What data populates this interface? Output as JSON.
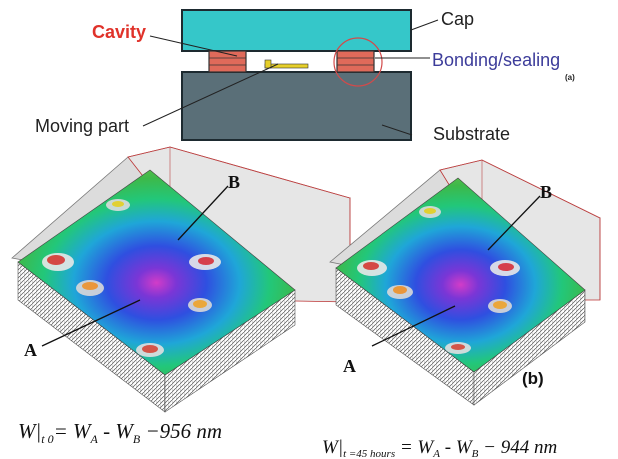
{
  "package_diagram": {
    "labels": {
      "cavity": "Cavity",
      "cap": "Cap",
      "bonding_sealing": "Bonding/sealing",
      "part_a": "(a)",
      "moving_part": "Moving part",
      "substrate": "Substrate"
    },
    "colors": {
      "cap_fill": "#35c7c9",
      "substrate_fill": "#5a6f78",
      "seal_fill": "#e06a5a",
      "moving_part_fill": "#e6cf2a",
      "cavity_label": "#e0322a",
      "bonding_label": "#3c3c9a"
    }
  },
  "surface_plots": {
    "left": {
      "point_a": "A",
      "point_b": "B"
    },
    "right": {
      "point_a": "A",
      "point_b": "B",
      "part_label": "(b)"
    }
  },
  "equations": {
    "left": {
      "lhs": "W|",
      "subscript": "t  0",
      "rhs": "= W",
      "sub_a": "A",
      "minus": " - W",
      "sub_b": "B",
      "value": " −956 nm"
    },
    "right": {
      "lhs": "W|",
      "subscript": "t =45 hours",
      "rhs": " = W",
      "sub_a": "A",
      "minus": " - W",
      "sub_b": "B",
      "value": " − 944 nm"
    }
  }
}
